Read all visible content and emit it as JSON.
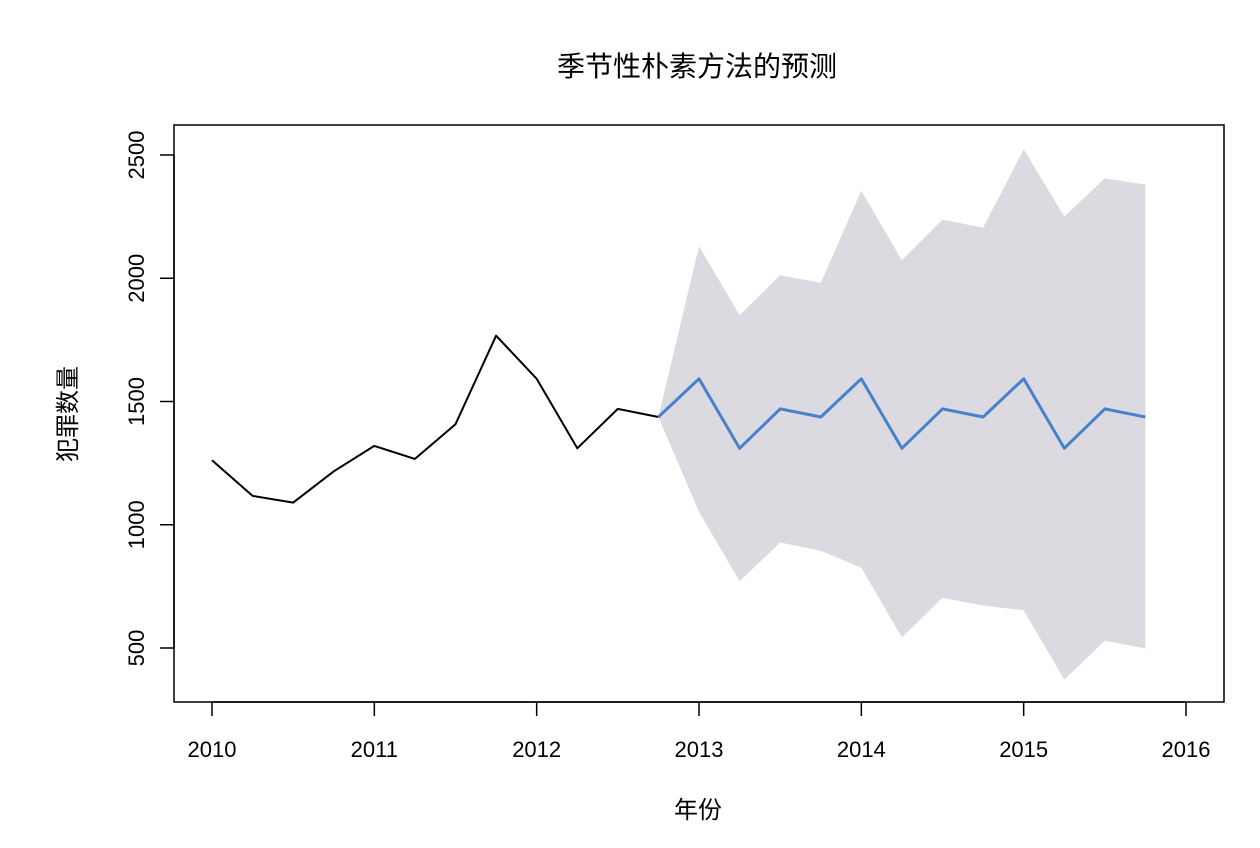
{
  "chart_data": {
    "type": "line",
    "title": "季节性朴素方法的预测",
    "xlabel": "年份",
    "ylabel": "犯罪数量",
    "xlim": [
      2010,
      2016
    ],
    "ylim": [
      500,
      2500
    ],
    "x_ticks": [
      2010,
      2011,
      2012,
      2013,
      2014,
      2015,
      2016
    ],
    "y_ticks": [
      500,
      1000,
      1500,
      2000,
      2500
    ],
    "grid": false,
    "series": [
      {
        "role": "observed",
        "color": "#000000",
        "x": [
          2010.0,
          2010.25,
          2010.5,
          2010.75,
          2011.0,
          2011.25,
          2011.5,
          2011.75,
          2012.0,
          2012.25,
          2012.5,
          2012.75
        ],
        "values": [
          1262,
          1117,
          1090,
          1217,
          1320,
          1267,
          1408,
          1767,
          1592,
          1310,
          1470,
          1437
        ]
      },
      {
        "role": "forecast",
        "color": "#4682cc",
        "x": [
          2012.75,
          2013.0,
          2013.25,
          2013.5,
          2013.75,
          2014.0,
          2014.25,
          2014.5,
          2014.75,
          2015.0,
          2015.25,
          2015.5,
          2015.75
        ],
        "values": [
          1437,
          1592,
          1310,
          1470,
          1437,
          1592,
          1310,
          1470,
          1437,
          1592,
          1310,
          1470,
          1437
        ]
      }
    ],
    "interval": {
      "color": "#dbdae0",
      "x": [
        2012.75,
        2013.0,
        2013.25,
        2013.5,
        2013.75,
        2014.0,
        2014.25,
        2014.5,
        2014.75,
        2015.0,
        2015.25,
        2015.5,
        2015.75
      ],
      "upper": [
        1437,
        2130,
        1850,
        2012,
        1982,
        2355,
        2073,
        2238,
        2205,
        2523,
        2250,
        2405,
        2380
      ],
      "lower": [
        1437,
        1052,
        771,
        928,
        894,
        826,
        543,
        704,
        672,
        653,
        372,
        530,
        498
      ]
    }
  }
}
